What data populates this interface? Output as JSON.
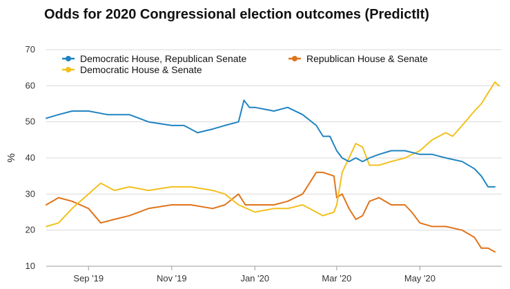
{
  "chart_data": {
    "type": "line",
    "title": "Odds for 2020 Congressional election outcomes (PredictIt)",
    "xlabel": "",
    "ylabel": "%",
    "ylim": [
      10,
      70
    ],
    "yticks": [
      10,
      20,
      30,
      40,
      50,
      60,
      70
    ],
    "xlim": [
      "2019-08-01",
      "2020-06-30"
    ],
    "xticks": [
      {
        "date": "2019-09-01",
        "label": "Sep '19"
      },
      {
        "date": "2019-11-01",
        "label": "Nov '19"
      },
      {
        "date": "2020-01-01",
        "label": "Jan '20"
      },
      {
        "date": "2020-03-01",
        "label": "Mar '20"
      },
      {
        "date": "2020-05-01",
        "label": "May '20"
      }
    ],
    "grid": "horizontal",
    "legend_position": "top-left",
    "series": [
      {
        "name": "Democratic House, Republican Senate",
        "color": "#1f83c1",
        "points": [
          [
            "2019-08-01",
            51
          ],
          [
            "2019-08-10",
            52
          ],
          [
            "2019-08-20",
            53
          ],
          [
            "2019-09-01",
            53
          ],
          [
            "2019-09-15",
            52
          ],
          [
            "2019-10-01",
            52
          ],
          [
            "2019-10-15",
            50
          ],
          [
            "2019-11-01",
            49
          ],
          [
            "2019-11-10",
            49
          ],
          [
            "2019-11-20",
            47
          ],
          [
            "2019-12-01",
            48
          ],
          [
            "2019-12-10",
            49
          ],
          [
            "2019-12-20",
            50
          ],
          [
            "2019-12-24",
            56
          ],
          [
            "2019-12-28",
            54
          ],
          [
            "2020-01-01",
            54
          ],
          [
            "2020-01-15",
            53
          ],
          [
            "2020-01-25",
            54
          ],
          [
            "2020-02-05",
            52
          ],
          [
            "2020-02-15",
            49
          ],
          [
            "2020-02-20",
            46
          ],
          [
            "2020-02-25",
            46
          ],
          [
            "2020-03-01",
            42
          ],
          [
            "2020-03-05",
            40
          ],
          [
            "2020-03-10",
            39
          ],
          [
            "2020-03-15",
            40
          ],
          [
            "2020-03-20",
            39
          ],
          [
            "2020-03-25",
            40
          ],
          [
            "2020-04-01",
            41
          ],
          [
            "2020-04-10",
            42
          ],
          [
            "2020-04-20",
            42
          ],
          [
            "2020-05-01",
            41
          ],
          [
            "2020-05-10",
            41
          ],
          [
            "2020-05-20",
            40
          ],
          [
            "2020-06-01",
            39
          ],
          [
            "2020-06-10",
            37
          ],
          [
            "2020-06-15",
            35
          ],
          [
            "2020-06-20",
            32
          ],
          [
            "2020-06-25",
            32
          ]
        ]
      },
      {
        "name": "Republican House & Senate",
        "color": "#e07319",
        "points": [
          [
            "2019-08-01",
            27
          ],
          [
            "2019-08-10",
            29
          ],
          [
            "2019-08-20",
            28
          ],
          [
            "2019-09-01",
            26
          ],
          [
            "2019-09-10",
            22
          ],
          [
            "2019-09-20",
            23
          ],
          [
            "2019-10-01",
            24
          ],
          [
            "2019-10-15",
            26
          ],
          [
            "2019-11-01",
            27
          ],
          [
            "2019-11-15",
            27
          ],
          [
            "2019-12-01",
            26
          ],
          [
            "2019-12-10",
            27
          ],
          [
            "2019-12-20",
            30
          ],
          [
            "2019-12-25",
            27
          ],
          [
            "2020-01-01",
            27
          ],
          [
            "2020-01-15",
            27
          ],
          [
            "2020-01-25",
            28
          ],
          [
            "2020-02-05",
            30
          ],
          [
            "2020-02-15",
            36
          ],
          [
            "2020-02-20",
            36
          ],
          [
            "2020-02-28",
            35
          ],
          [
            "2020-03-01",
            29
          ],
          [
            "2020-03-05",
            30
          ],
          [
            "2020-03-10",
            26
          ],
          [
            "2020-03-15",
            23
          ],
          [
            "2020-03-20",
            24
          ],
          [
            "2020-03-25",
            28
          ],
          [
            "2020-04-01",
            29
          ],
          [
            "2020-04-10",
            27
          ],
          [
            "2020-04-20",
            27
          ],
          [
            "2020-04-25",
            25
          ],
          [
            "2020-05-01",
            22
          ],
          [
            "2020-05-10",
            21
          ],
          [
            "2020-05-20",
            21
          ],
          [
            "2020-06-01",
            20
          ],
          [
            "2020-06-10",
            18
          ],
          [
            "2020-06-15",
            15
          ],
          [
            "2020-06-20",
            15
          ],
          [
            "2020-06-25",
            14
          ]
        ]
      },
      {
        "name": "Democratic House & Senate",
        "color": "#f2c01b",
        "points": [
          [
            "2019-08-01",
            21
          ],
          [
            "2019-08-10",
            22
          ],
          [
            "2019-08-20",
            26
          ],
          [
            "2019-09-01",
            30
          ],
          [
            "2019-09-10",
            33
          ],
          [
            "2019-09-20",
            31
          ],
          [
            "2019-10-01",
            32
          ],
          [
            "2019-10-15",
            31
          ],
          [
            "2019-11-01",
            32
          ],
          [
            "2019-11-15",
            32
          ],
          [
            "2019-12-01",
            31
          ],
          [
            "2019-12-10",
            30
          ],
          [
            "2019-12-20",
            27
          ],
          [
            "2020-01-01",
            25
          ],
          [
            "2020-01-15",
            26
          ],
          [
            "2020-01-25",
            26
          ],
          [
            "2020-02-05",
            27
          ],
          [
            "2020-02-10",
            26
          ],
          [
            "2020-02-20",
            24
          ],
          [
            "2020-02-28",
            25
          ],
          [
            "2020-03-01",
            27
          ],
          [
            "2020-03-05",
            36
          ],
          [
            "2020-03-10",
            40
          ],
          [
            "2020-03-15",
            44
          ],
          [
            "2020-03-20",
            43
          ],
          [
            "2020-03-25",
            38
          ],
          [
            "2020-04-01",
            38
          ],
          [
            "2020-04-10",
            39
          ],
          [
            "2020-04-20",
            40
          ],
          [
            "2020-05-01",
            42
          ],
          [
            "2020-05-10",
            45
          ],
          [
            "2020-05-20",
            47
          ],
          [
            "2020-05-25",
            46
          ],
          [
            "2020-06-01",
            49
          ],
          [
            "2020-06-10",
            53
          ],
          [
            "2020-06-15",
            55
          ],
          [
            "2020-06-20",
            58
          ],
          [
            "2020-06-25",
            61
          ],
          [
            "2020-06-28",
            60
          ]
        ]
      }
    ]
  }
}
